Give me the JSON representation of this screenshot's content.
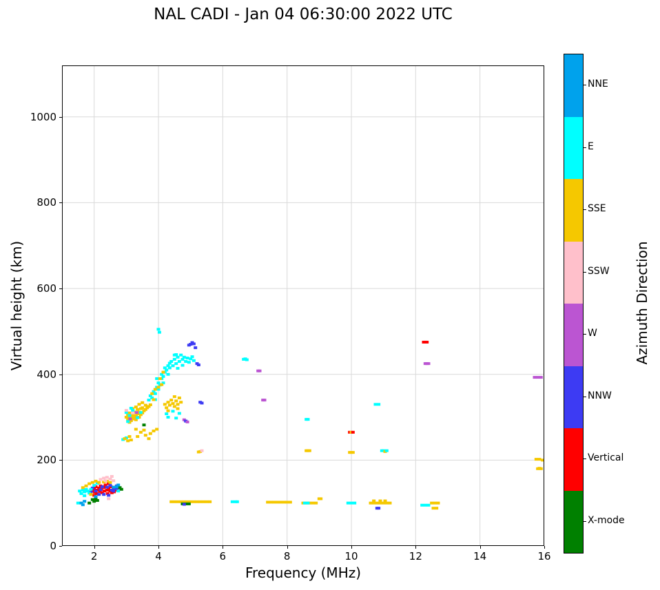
{
  "chart_data": {
    "type": "scatter",
    "title": "NAL CADI - Jan 04 06:30:00 2022 UTC",
    "xlabel": "Frequency (MHz)",
    "ylabel": "Virtual height (km)",
    "xlim": [
      1,
      16
    ],
    "ylim": [
      0,
      1120
    ],
    "xticks": [
      2,
      4,
      6,
      8,
      10,
      12,
      14,
      16
    ],
    "yticks": [
      0,
      200,
      400,
      600,
      800,
      1000
    ],
    "grid": true,
    "grid_color": "#d9d9d9",
    "frame_color": "#000000",
    "colorbar": {
      "label": "Azimuth Direction",
      "position": "right",
      "categories": [
        {
          "label": "NNE",
          "color": "#00a2ec"
        },
        {
          "label": "E",
          "color": "#00ffff"
        },
        {
          "label": "SSE",
          "color": "#f5c800"
        },
        {
          "label": "SSW",
          "color": "#ffc0cb"
        },
        {
          "label": "W",
          "color": "#bb55d2"
        },
        {
          "label": "NNW",
          "color": "#3d3bf3"
        },
        {
          "label": "Vertical",
          "color": "#ff0000"
        },
        {
          "label": "X-mode",
          "color": "#008000"
        }
      ]
    },
    "point_size_mhz_km": [
      0.1,
      6
    ],
    "points_format": [
      "frequency_mhz",
      "virtual_height_km",
      "category_index"
    ],
    "points": [
      [
        1.95,
        128,
        6
      ],
      [
        2.0,
        132,
        6
      ],
      [
        2.02,
        125,
        6
      ],
      [
        2.05,
        138,
        6
      ],
      [
        2.08,
        122,
        6
      ],
      [
        2.1,
        130,
        6
      ],
      [
        2.15,
        135,
        6
      ],
      [
        2.18,
        127,
        6
      ],
      [
        2.2,
        140,
        6
      ],
      [
        2.22,
        132,
        6
      ],
      [
        2.25,
        124,
        6
      ],
      [
        2.3,
        136,
        6
      ],
      [
        2.32,
        128,
        6
      ],
      [
        2.35,
        142,
        6
      ],
      [
        2.4,
        130,
        6
      ],
      [
        2.42,
        122,
        6
      ],
      [
        2.45,
        134,
        6
      ],
      [
        2.5,
        128,
        6
      ],
      [
        2.52,
        138,
        6
      ],
      [
        2.55,
        124,
        6
      ],
      [
        2.6,
        132,
        6
      ],
      [
        2.62,
        126,
        6
      ],
      [
        2.65,
        136,
        6
      ],
      [
        2.7,
        130,
        6
      ],
      [
        2.45,
        145,
        6
      ],
      [
        2.0,
        118,
        6
      ],
      [
        1.9,
        125,
        5
      ],
      [
        1.95,
        135,
        5
      ],
      [
        2.05,
        128,
        5
      ],
      [
        2.15,
        120,
        5
      ],
      [
        2.25,
        138,
        5
      ],
      [
        2.3,
        120,
        5
      ],
      [
        2.4,
        137,
        5
      ],
      [
        2.5,
        141,
        5
      ],
      [
        2.6,
        128,
        5
      ],
      [
        2.65,
        133,
        5
      ],
      [
        2.7,
        140,
        5
      ],
      [
        2.75,
        135,
        5
      ],
      [
        2.45,
        118,
        5
      ],
      [
        2.2,
        131,
        5
      ],
      [
        2.55,
        130,
        5
      ],
      [
        1.55,
        128,
        1
      ],
      [
        1.6,
        122,
        1
      ],
      [
        1.65,
        130,
        1
      ],
      [
        1.7,
        126,
        1
      ],
      [
        1.75,
        132,
        1
      ],
      [
        1.8,
        128,
        1
      ],
      [
        1.85,
        123,
        1
      ],
      [
        1.9,
        132,
        1
      ],
      [
        2.0,
        141,
        1
      ],
      [
        2.1,
        146,
        1
      ],
      [
        1.5,
        100,
        1
      ],
      [
        1.7,
        117,
        1
      ],
      [
        2.75,
        128,
        1
      ],
      [
        1.75,
        140,
        2
      ],
      [
        1.85,
        145,
        2
      ],
      [
        1.95,
        148,
        2
      ],
      [
        2.05,
        151,
        2
      ],
      [
        2.15,
        148,
        2
      ],
      [
        2.3,
        149,
        2
      ],
      [
        1.9,
        120,
        2
      ],
      [
        2.4,
        151,
        2
      ],
      [
        1.65,
        136,
        2
      ],
      [
        2.5,
        148,
        2
      ],
      [
        2.2,
        155,
        3
      ],
      [
        2.3,
        158,
        3
      ],
      [
        2.4,
        160,
        3
      ],
      [
        2.5,
        156,
        3
      ],
      [
        2.35,
        152,
        3
      ],
      [
        2.45,
        110,
        3
      ],
      [
        2.55,
        162,
        3
      ],
      [
        2.6,
        152,
        3
      ],
      [
        1.95,
        108,
        7
      ],
      [
        2.0,
        104,
        7
      ],
      [
        2.05,
        110,
        7
      ],
      [
        2.1,
        106,
        7
      ],
      [
        2.8,
        136,
        7
      ],
      [
        2.85,
        132,
        7
      ],
      [
        1.85,
        100,
        7
      ],
      [
        1.6,
        100,
        0
      ],
      [
        1.65,
        96,
        0
      ],
      [
        1.7,
        104,
        0
      ],
      [
        2.6,
        137,
        0
      ],
      [
        2.7,
        138,
        0
      ],
      [
        2.75,
        142,
        0
      ],
      [
        2.05,
        115,
        0
      ],
      [
        2.9,
        248,
        1
      ],
      [
        3.0,
        252,
        1
      ],
      [
        3.05,
        245,
        2
      ],
      [
        2.95,
        250,
        2
      ],
      [
        3.1,
        255,
        2
      ],
      [
        3.15,
        247,
        2
      ],
      [
        3.0,
        300,
        2
      ],
      [
        3.05,
        295,
        2
      ],
      [
        3.05,
        306,
        2
      ],
      [
        3.1,
        298,
        2
      ],
      [
        3.1,
        310,
        2
      ],
      [
        3.15,
        302,
        2
      ],
      [
        3.15,
        292,
        2
      ],
      [
        3.2,
        306,
        2
      ],
      [
        3.2,
        296,
        2
      ],
      [
        3.25,
        300,
        2
      ],
      [
        3.25,
        312,
        2
      ],
      [
        3.3,
        304,
        2
      ],
      [
        3.3,
        294,
        2
      ],
      [
        3.35,
        308,
        2
      ],
      [
        3.35,
        318,
        2
      ],
      [
        3.4,
        300,
        2
      ],
      [
        3.4,
        312,
        2
      ],
      [
        3.45,
        306,
        2
      ],
      [
        3.45,
        320,
        2
      ],
      [
        3.5,
        310,
        2
      ],
      [
        3.5,
        322,
        2
      ],
      [
        3.55,
        315,
        2
      ],
      [
        3.6,
        318,
        2
      ],
      [
        3.6,
        328,
        2
      ],
      [
        3.65,
        322,
        2
      ],
      [
        3.7,
        325,
        2
      ],
      [
        3.75,
        329,
        2
      ],
      [
        3.2,
        320,
        2
      ],
      [
        3.3,
        324,
        2
      ],
      [
        3.1,
        288,
        2
      ],
      [
        3.4,
        330,
        2
      ],
      [
        3.5,
        334,
        2
      ],
      [
        3.0,
        311,
        1
      ],
      [
        3.1,
        304,
        1
      ],
      [
        3.2,
        316,
        1
      ],
      [
        3.35,
        299,
        1
      ],
      [
        3.45,
        311,
        1
      ],
      [
        3.15,
        321,
        1
      ],
      [
        3.05,
        290,
        1
      ],
      [
        3.2,
        310,
        3
      ],
      [
        3.0,
        316,
        3
      ],
      [
        3.12,
        296,
        4
      ],
      [
        3.32,
        311,
        4
      ],
      [
        3.3,
        272,
        2
      ],
      [
        3.45,
        265,
        2
      ],
      [
        3.55,
        270,
        2
      ],
      [
        3.6,
        258,
        2
      ],
      [
        3.75,
        262,
        2
      ],
      [
        3.85,
        268,
        2
      ],
      [
        3.95,
        272,
        2
      ],
      [
        3.35,
        255,
        2
      ],
      [
        3.7,
        250,
        2
      ],
      [
        3.55,
        282,
        7
      ],
      [
        3.7,
        340,
        1
      ],
      [
        3.75,
        350,
        1
      ],
      [
        3.8,
        345,
        1
      ],
      [
        3.85,
        360,
        1
      ],
      [
        3.9,
        355,
        1
      ],
      [
        3.95,
        370,
        1
      ],
      [
        4.0,
        365,
        1
      ],
      [
        4.0,
        380,
        1
      ],
      [
        4.05,
        375,
        1
      ],
      [
        4.1,
        390,
        1
      ],
      [
        4.1,
        400,
        1
      ],
      [
        4.15,
        395,
        1
      ],
      [
        4.2,
        405,
        1
      ],
      [
        4.2,
        415,
        1
      ],
      [
        4.25,
        410,
        1
      ],
      [
        4.3,
        420,
        1
      ],
      [
        4.3,
        400,
        1
      ],
      [
        4.35,
        415,
        1
      ],
      [
        4.15,
        380,
        1
      ],
      [
        3.9,
        341,
        1
      ],
      [
        3.95,
        390,
        1
      ],
      [
        3.8,
        355,
        2
      ],
      [
        3.9,
        365,
        2
      ],
      [
        4.0,
        370,
        2
      ],
      [
        4.05,
        390,
        2
      ],
      [
        4.15,
        405,
        2
      ],
      [
        3.85,
        341,
        2
      ],
      [
        4.1,
        376,
        2
      ],
      [
        4.0,
        505,
        1
      ],
      [
        4.03,
        498,
        1
      ],
      [
        4.4,
        430,
        1
      ],
      [
        4.45,
        420,
        1
      ],
      [
        4.5,
        435,
        1
      ],
      [
        4.5,
        445,
        1
      ],
      [
        4.55,
        425,
        1
      ],
      [
        4.6,
        440,
        1
      ],
      [
        4.65,
        430,
        1
      ],
      [
        4.7,
        445,
        1
      ],
      [
        4.75,
        435,
        1
      ],
      [
        4.8,
        440,
        1
      ],
      [
        4.85,
        430,
        1
      ],
      [
        4.9,
        438,
        1
      ],
      [
        4.95,
        428,
        1
      ],
      [
        5.0,
        436,
        1
      ],
      [
        5.05,
        441,
        1
      ],
      [
        5.1,
        432,
        1
      ],
      [
        4.35,
        426,
        1
      ],
      [
        4.55,
        446,
        1
      ],
      [
        4.75,
        421,
        1
      ],
      [
        4.6,
        414,
        1
      ],
      [
        5.0,
        470,
        5
      ],
      [
        5.05,
        474,
        5
      ],
      [
        5.1,
        471,
        5
      ],
      [
        4.95,
        468,
        5
      ],
      [
        5.15,
        462,
        5
      ],
      [
        5.2,
        425,
        5
      ],
      [
        5.25,
        422,
        5
      ],
      [
        4.2,
        330,
        2
      ],
      [
        4.25,
        322,
        2
      ],
      [
        4.3,
        335,
        2
      ],
      [
        4.35,
        328,
        2
      ],
      [
        4.4,
        340,
        2
      ],
      [
        4.45,
        332,
        2
      ],
      [
        4.5,
        325,
        2
      ],
      [
        4.55,
        338,
        2
      ],
      [
        4.6,
        330,
        2
      ],
      [
        4.65,
        345,
        2
      ],
      [
        4.7,
        335,
        2
      ],
      [
        4.3,
        315,
        2
      ],
      [
        4.5,
        348,
        2
      ],
      [
        4.6,
        320,
        2
      ],
      [
        4.25,
        308,
        1
      ],
      [
        4.45,
        314,
        1
      ],
      [
        4.65,
        309,
        1
      ],
      [
        4.3,
        300,
        1
      ],
      [
        4.55,
        298,
        1
      ],
      [
        4.8,
        294,
        4
      ],
      [
        4.85,
        291,
        5
      ],
      [
        4.9,
        289,
        4
      ],
      [
        5.3,
        335,
        5
      ],
      [
        5.35,
        333,
        5
      ],
      [
        5.3,
        220,
        2
      ],
      [
        5.35,
        222,
        3
      ],
      [
        5.25,
        219,
        2
      ],
      [
        4.4,
        103,
        2
      ],
      [
        4.5,
        103,
        2
      ],
      [
        4.6,
        103,
        2
      ],
      [
        4.7,
        103,
        2
      ],
      [
        4.8,
        103,
        2
      ],
      [
        4.9,
        103,
        2
      ],
      [
        5.0,
        103,
        2
      ],
      [
        5.1,
        103,
        2
      ],
      [
        5.2,
        103,
        2
      ],
      [
        5.3,
        103,
        2
      ],
      [
        5.4,
        103,
        2
      ],
      [
        5.5,
        103,
        2
      ],
      [
        5.6,
        103,
        2
      ],
      [
        4.75,
        98,
        7
      ],
      [
        4.85,
        98,
        7
      ],
      [
        4.95,
        98,
        7
      ],
      [
        4.8,
        97,
        5
      ],
      [
        6.3,
        103,
        1
      ],
      [
        6.4,
        103,
        1
      ],
      [
        6.45,
        103,
        1
      ],
      [
        7.4,
        102,
        2
      ],
      [
        7.5,
        102,
        2
      ],
      [
        7.6,
        102,
        2
      ],
      [
        7.7,
        102,
        2
      ],
      [
        7.8,
        102,
        2
      ],
      [
        7.9,
        102,
        2
      ],
      [
        8.0,
        102,
        2
      ],
      [
        8.1,
        102,
        2
      ],
      [
        8.5,
        100,
        2
      ],
      [
        8.6,
        100,
        2
      ],
      [
        8.7,
        100,
        2
      ],
      [
        8.8,
        100,
        2
      ],
      [
        8.9,
        100,
        2
      ],
      [
        8.55,
        100,
        1
      ],
      [
        8.65,
        100,
        1
      ],
      [
        9.0,
        110,
        2
      ],
      [
        9.05,
        110,
        2
      ],
      [
        9.9,
        100,
        1
      ],
      [
        10.0,
        100,
        1
      ],
      [
        10.1,
        100,
        1
      ],
      [
        10.6,
        100,
        2
      ],
      [
        10.7,
        100,
        2
      ],
      [
        10.8,
        100,
        2
      ],
      [
        10.9,
        100,
        2
      ],
      [
        11.0,
        100,
        2
      ],
      [
        11.1,
        100,
        2
      ],
      [
        11.2,
        100,
        2
      ],
      [
        10.7,
        105,
        2
      ],
      [
        10.9,
        105,
        2
      ],
      [
        11.05,
        105,
        2
      ],
      [
        10.8,
        88,
        5
      ],
      [
        10.85,
        88,
        5
      ],
      [
        12.2,
        95,
        1
      ],
      [
        12.3,
        95,
        1
      ],
      [
        12.4,
        95,
        1
      ],
      [
        12.5,
        100,
        2
      ],
      [
        12.6,
        100,
        2
      ],
      [
        12.7,
        100,
        2
      ],
      [
        12.55,
        88,
        2
      ],
      [
        12.65,
        88,
        2
      ],
      [
        6.65,
        435,
        1
      ],
      [
        6.7,
        436,
        1
      ],
      [
        6.75,
        434,
        1
      ],
      [
        7.1,
        408,
        4
      ],
      [
        7.15,
        408,
        4
      ],
      [
        7.25,
        340,
        4
      ],
      [
        7.3,
        340,
        4
      ],
      [
        8.6,
        295,
        1
      ],
      [
        8.65,
        295,
        1
      ],
      [
        8.6,
        222,
        2
      ],
      [
        8.65,
        222,
        2
      ],
      [
        8.7,
        222,
        2
      ],
      [
        9.95,
        265,
        6
      ],
      [
        10.0,
        265,
        2
      ],
      [
        10.05,
        265,
        6
      ],
      [
        9.95,
        218,
        2
      ],
      [
        10.0,
        218,
        2
      ],
      [
        10.05,
        218,
        2
      ],
      [
        10.75,
        330,
        1
      ],
      [
        10.85,
        330,
        1
      ],
      [
        10.95,
        222,
        1
      ],
      [
        11.0,
        222,
        1
      ],
      [
        11.05,
        220,
        2
      ],
      [
        11.1,
        222,
        1
      ],
      [
        12.25,
        475,
        6
      ],
      [
        12.3,
        475,
        6
      ],
      [
        12.35,
        475,
        6
      ],
      [
        12.3,
        425,
        4
      ],
      [
        12.35,
        425,
        4
      ],
      [
        12.4,
        425,
        4
      ],
      [
        15.7,
        393,
        4
      ],
      [
        15.8,
        393,
        4
      ],
      [
        15.9,
        393,
        4
      ],
      [
        15.75,
        202,
        2
      ],
      [
        15.85,
        202,
        2
      ],
      [
        15.95,
        200,
        2
      ],
      [
        15.8,
        180,
        2
      ],
      [
        15.85,
        181,
        2
      ],
      [
        15.9,
        180,
        2
      ]
    ]
  }
}
